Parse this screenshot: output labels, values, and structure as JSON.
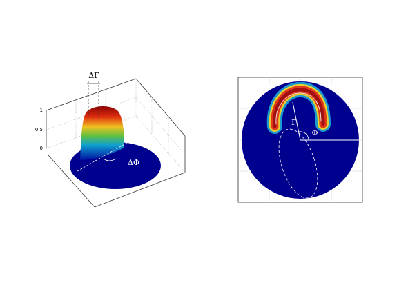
{
  "left_panel": {
    "z_ticks": [
      1,
      0.5,
      0
    ],
    "annotations": {
      "delta_gamma": "ΔΓ",
      "delta_phi": "ΔΦ"
    }
  },
  "right_panel": {
    "labels": {
      "gamma": "Γ",
      "phi": "Φ"
    }
  }
}
